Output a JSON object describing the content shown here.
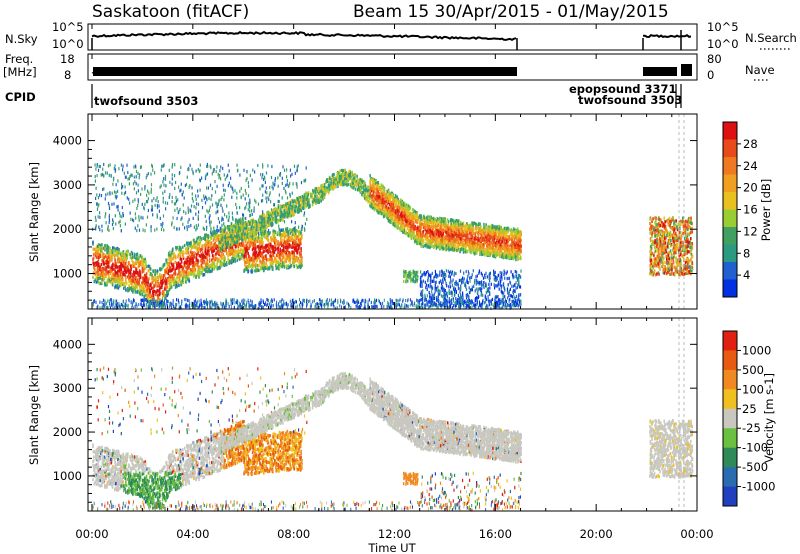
{
  "header": {
    "station": "Saskatoon (fitACF)",
    "beam_info": "Beam 15  30/Apr/2015 - 01/May/2015"
  },
  "strips": {
    "nsky": {
      "label": "N.Sky",
      "ticks": [
        "10^5",
        "10^0"
      ],
      "right_ticks": [
        "10^5",
        "10^0"
      ],
      "right_label": "N.Search"
    },
    "freq": {
      "label_line1": "Freq.",
      "label_line2": "[MHz]",
      "ticks": [
        "18",
        "8"
      ],
      "right_ticks": [
        "80",
        "0"
      ],
      "right_label": "Nave"
    },
    "cpid": {
      "label": "CPID",
      "segments": [
        {
          "text": "twofsound 3503",
          "at": "00:00"
        },
        {
          "text": "epopsound 3371",
          "at": "22:30"
        },
        {
          "text": "twofsound 3503",
          "at": "23:45"
        }
      ]
    }
  },
  "chart_data": [
    {
      "type": "heatmap",
      "name": "Power",
      "ylabel": "Slant Range [km]",
      "yticks": [
        1000,
        2000,
        3000,
        4000
      ],
      "ylim": [
        200,
        4600
      ],
      "colorbar": {
        "label": "Power [dB]",
        "ticks": [
          4,
          8,
          12,
          16,
          20,
          24,
          28
        ],
        "range": [
          0,
          32
        ]
      }
    },
    {
      "type": "heatmap",
      "name": "Velocity",
      "ylabel": "Slant Range [km]",
      "yticks": [
        1000,
        2000,
        3000,
        4000
      ],
      "ylim": [
        200,
        4600
      ],
      "colorbar": {
        "label": "Velocity [m s-1]",
        "ticks": [
          1000,
          500,
          100,
          25,
          -25,
          -100,
          -500,
          -1000
        ]
      }
    }
  ],
  "xaxis": {
    "label": "Time UT",
    "ticks": [
      "00:00",
      "04:00",
      "08:00",
      "12:00",
      "16:00",
      "20:00",
      "00:00"
    ],
    "range_hours": [
      0,
      24
    ]
  },
  "colors": {
    "power": [
      "#0030e0",
      "#2060d0",
      "#2a9a80",
      "#40a060",
      "#9acd32",
      "#e8c020",
      "#f0a020",
      "#f07820",
      "#e84a1a",
      "#dd1111"
    ],
    "velocity": [
      "#2040c0",
      "#2a6cb0",
      "#2e8b57",
      "#6cc040",
      "#c8c8c0",
      "#f0c020",
      "#f08a20",
      "#e85a10",
      "#e02010"
    ]
  }
}
